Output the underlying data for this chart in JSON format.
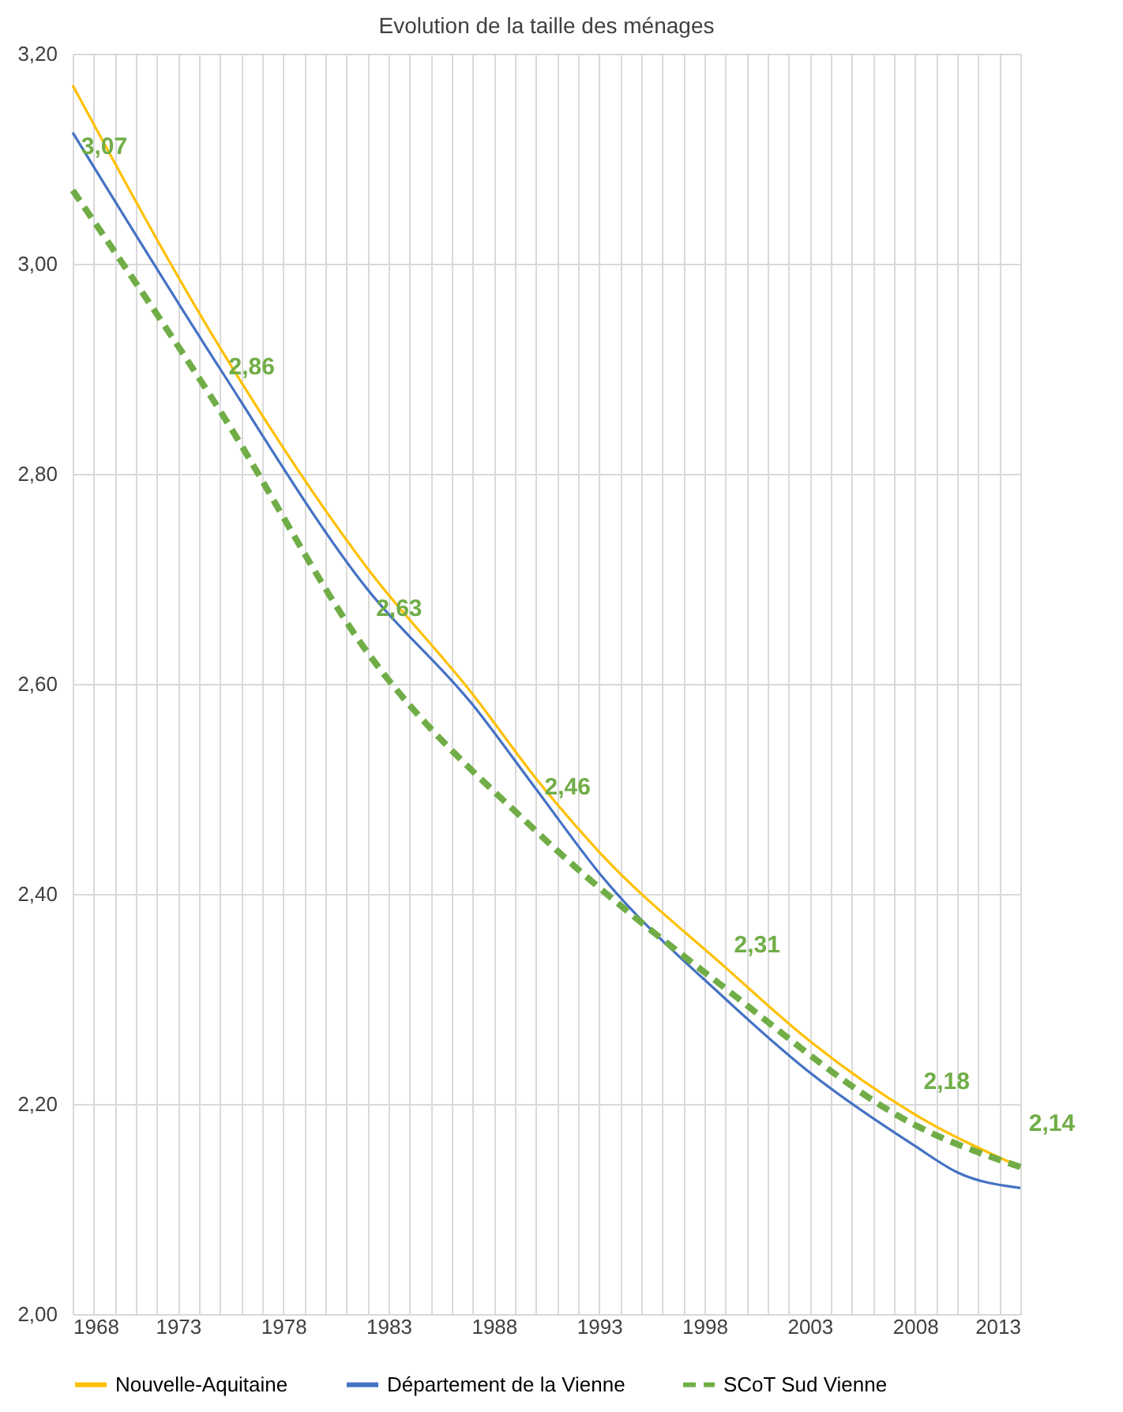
{
  "chart_data": {
    "type": "line",
    "title": "Evolution de la taille des ménages",
    "xlim": [
      1968,
      2013
    ],
    "xticks": [
      1968,
      {
        "value": 1969,
        "label": null
      },
      {
        "value": 1970,
        "label": null
      },
      {
        "value": 1971,
        "label": null
      },
      {
        "value": 1972,
        "label": null
      },
      1973,
      {
        "value": 1974,
        "label": null
      },
      {
        "value": 1975,
        "label": null
      },
      {
        "value": 1976,
        "label": null
      },
      {
        "value": 1977,
        "label": null
      },
      1978,
      {
        "value": 1979,
        "label": null
      },
      {
        "value": 1980,
        "label": null
      },
      {
        "value": 1981,
        "label": null
      },
      {
        "value": 1982,
        "label": null
      },
      1983,
      {
        "value": 1984,
        "label": null
      },
      {
        "value": 1985,
        "label": null
      },
      {
        "value": 1986,
        "label": null
      },
      {
        "value": 1987,
        "label": null
      },
      1988,
      {
        "value": 1989,
        "label": null
      },
      {
        "value": 1990,
        "label": null
      },
      {
        "value": 1991,
        "label": null
      },
      {
        "value": 1992,
        "label": null
      },
      1993,
      {
        "value": 1994,
        "label": null
      },
      {
        "value": 1995,
        "label": null
      },
      {
        "value": 1996,
        "label": null
      },
      {
        "value": 1997,
        "label": null
      },
      1998,
      {
        "value": 1999,
        "label": null
      },
      {
        "value": 2000,
        "label": null
      },
      {
        "value": 2001,
        "label": null
      },
      {
        "value": 2002,
        "label": null
      },
      2003,
      {
        "value": 2004,
        "label": null
      },
      {
        "value": 2005,
        "label": null
      },
      {
        "value": 2006,
        "label": null
      },
      {
        "value": 2007,
        "label": null
      },
      2008,
      {
        "value": 2009,
        "label": null
      },
      {
        "value": 2010,
        "label": null
      },
      {
        "value": 2011,
        "label": null
      },
      {
        "value": 2012,
        "label": null
      },
      2013
    ],
    "ylim": [
      2.0,
      3.2
    ],
    "yticks": [
      {
        "value": 2.0,
        "label": "2,00"
      },
      {
        "value": 2.2,
        "label": "2,20"
      },
      {
        "value": 2.4,
        "label": "2,40"
      },
      {
        "value": 2.6,
        "label": "2,60"
      },
      {
        "value": 2.8,
        "label": "2,80"
      },
      {
        "value": 3.0,
        "label": "3,00"
      },
      {
        "value": 3.2,
        "label": "3,20"
      }
    ],
    "grid": true,
    "legend": "bottom",
    "marker": "none",
    "series": [
      {
        "name": "Nouvelle-Aquitaine",
        "color": "#ffc000",
        "line_style": "solid",
        "x": [
          1968,
          1975,
          1982,
          1987,
          1990,
          1993,
          1999,
          2003,
          2008,
          2013
        ],
        "values": [
          3.17,
          2.92,
          2.71,
          2.59,
          2.51,
          2.44,
          2.33,
          2.26,
          2.19,
          2.14
        ]
      },
      {
        "name": "Département de la Vienne",
        "color": "#4472c4",
        "line_style": "solid",
        "x": [
          1968,
          1975,
          1982,
          1987,
          1990,
          1993,
          1999,
          2003,
          2008,
          2010,
          2013
        ],
        "values": [
          3.125,
          2.9,
          2.69,
          2.58,
          2.5,
          2.42,
          2.3,
          2.23,
          2.16,
          2.135,
          2.12
        ]
      },
      {
        "name": "SCoT Sud Vienne",
        "color": "#70ad47",
        "line_style": "dashed",
        "x": [
          1968,
          1975,
          1982,
          1990,
          1999,
          2008,
          2013
        ],
        "values": [
          3.07,
          2.86,
          2.63,
          2.46,
          2.31,
          2.18,
          2.14
        ],
        "value_labels": [
          "3,07",
          "2,86",
          "2,63",
          "2,46",
          "2,31",
          "2,18",
          "2,14"
        ]
      }
    ]
  }
}
